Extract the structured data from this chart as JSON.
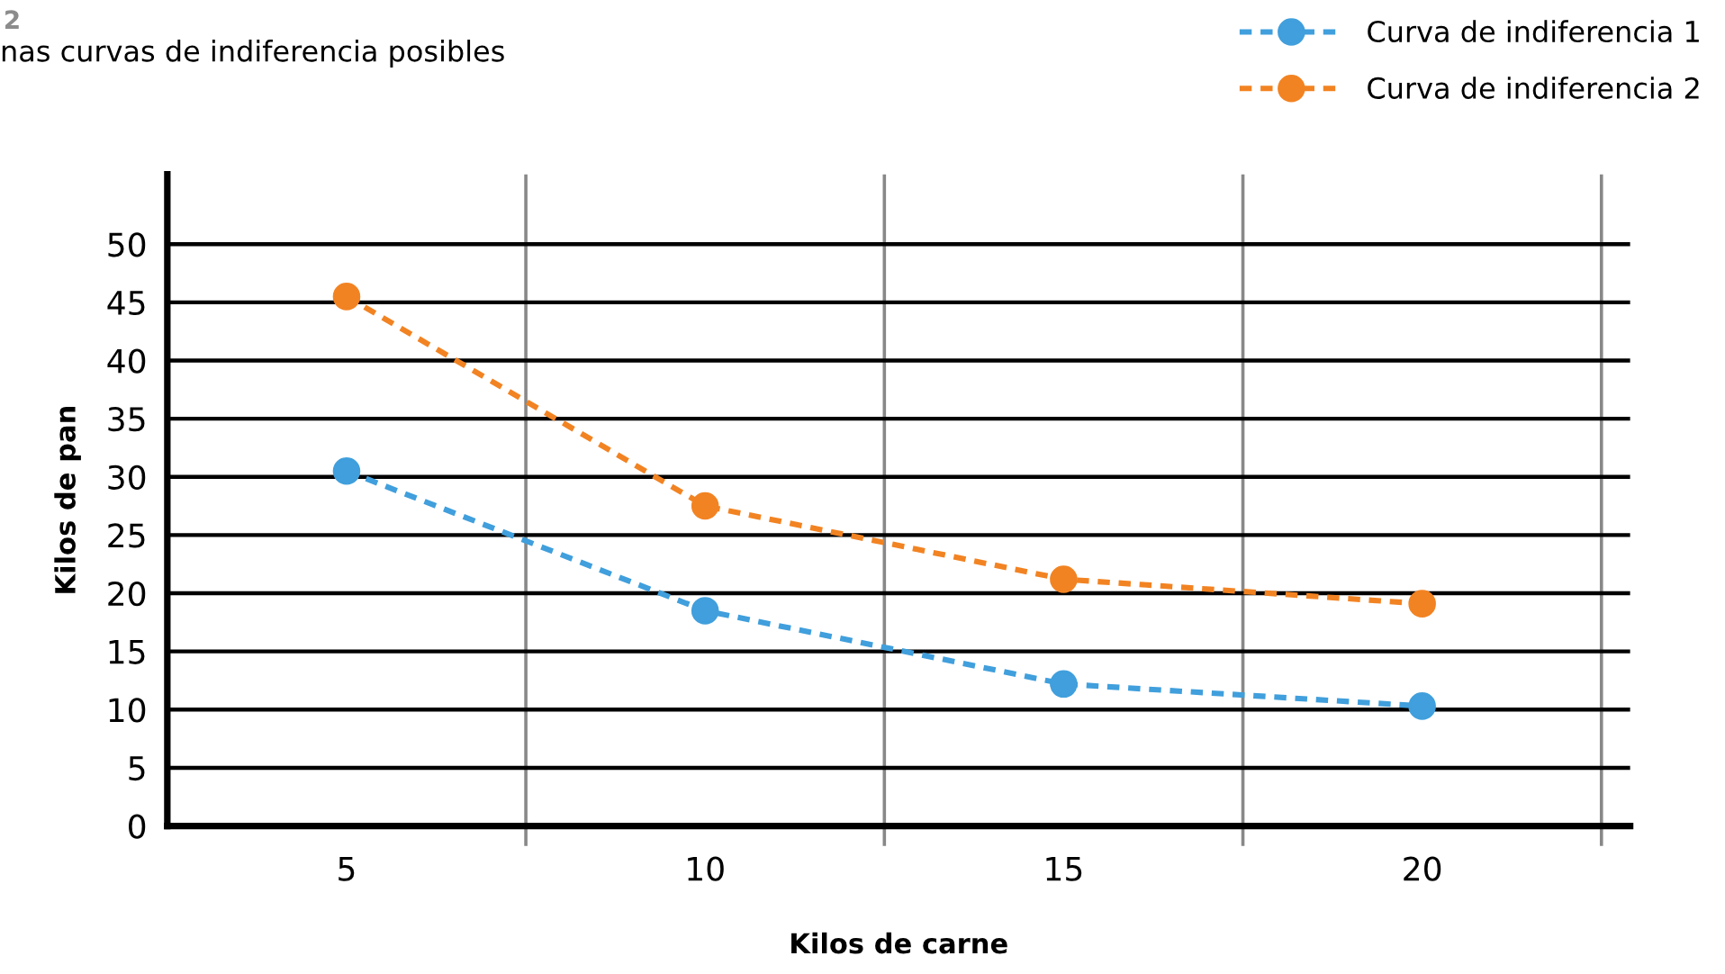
{
  "chart_data": {
    "type": "line",
    "title": "nas curvas de indiferencia posibles",
    "annotations": [
      "2"
    ],
    "xlabel": "Kilos de carne",
    "ylabel": "Kilos de pan",
    "categories": [
      "5",
      "10",
      "15",
      "20"
    ],
    "series": [
      {
        "name": "Curva de indiferencia 1",
        "color": "#409fdc",
        "values": [
          30.5,
          18.5,
          12.2,
          10.3
        ]
      },
      {
        "name": "Curva de indiferencia 2",
        "color": "#f28322",
        "values": [
          45.5,
          27.5,
          21.2,
          19.1
        ]
      }
    ],
    "ylim": [
      0,
      56
    ],
    "yticks": [
      0,
      5,
      10,
      15,
      20,
      25,
      30,
      35,
      40,
      45,
      50
    ],
    "grid": true,
    "legend": "top right",
    "marker": "circle",
    "line_style": "dashed"
  }
}
